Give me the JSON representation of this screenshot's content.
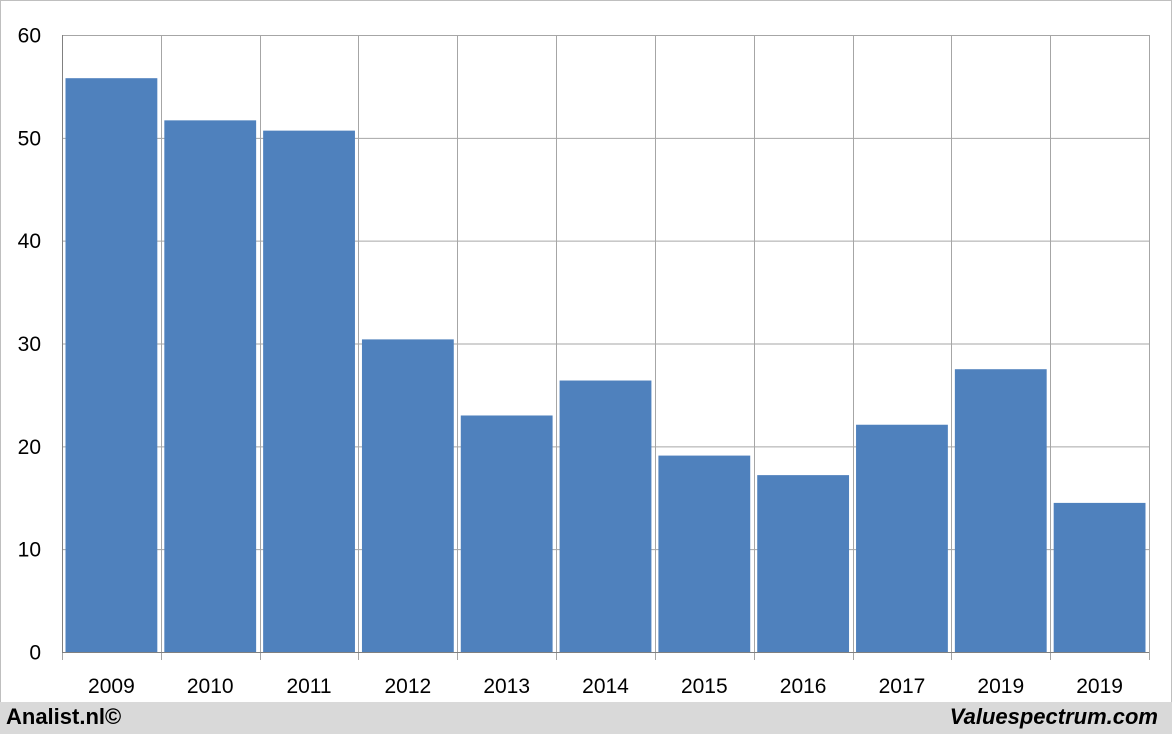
{
  "chart_data": {
    "type": "bar",
    "title": "",
    "xlabel": "",
    "ylabel": "",
    "categories": [
      "2009",
      "2010",
      "2011",
      "2012",
      "2013",
      "2014",
      "2015",
      "2016",
      "2017",
      "2019",
      "2019"
    ],
    "values": [
      55.8,
      51.7,
      50.7,
      30.4,
      23.0,
      26.4,
      19.1,
      17.2,
      22.1,
      27.5,
      14.5
    ],
    "ylim": [
      0,
      60
    ],
    "yticks": [
      "0",
      "10",
      "20",
      "30",
      "40",
      "50",
      "60"
    ],
    "grid": true,
    "legend": "none",
    "bar_color": "#4f81bd"
  },
  "footer": {
    "left": "Analist.nl©",
    "right": "Valuespectrum.com"
  }
}
